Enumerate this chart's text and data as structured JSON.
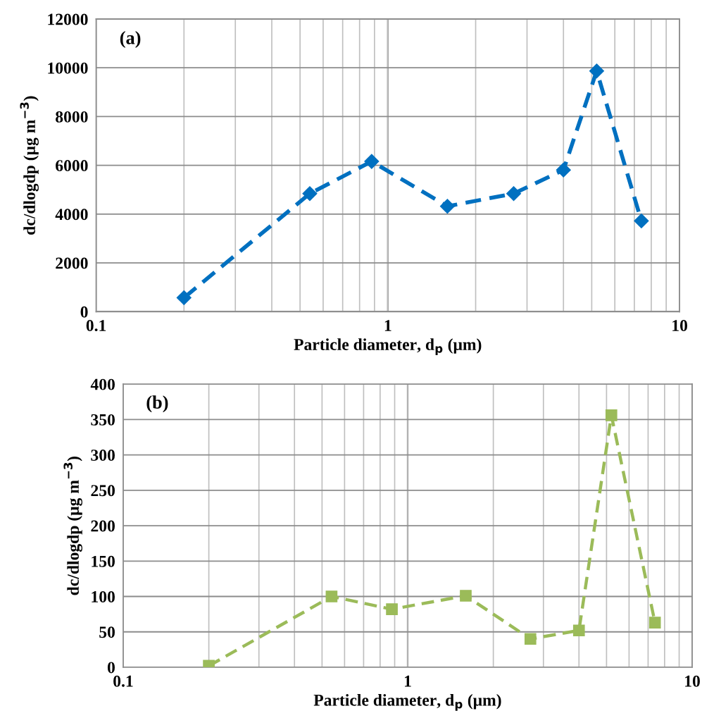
{
  "chart_data": [
    {
      "type": "line",
      "annotations": [
        "(a)"
      ],
      "xlabel": "Particle diameter, d$_{p}$ (μm)",
      "ylabel": "dc/dlogdp (μg m$^{−3}$)",
      "log": "x",
      "xlim": [
        0.1,
        10
      ],
      "xticks": [
        0.1,
        1,
        10
      ],
      "ylim": [
        0,
        12000
      ],
      "yticks": [
        0,
        2000,
        4000,
        6000,
        8000,
        10000,
        12000
      ],
      "grid": true,
      "ref_lines": [
        {
          "axis": "x",
          "value": 1,
          "color": "#6e6e6e"
        }
      ],
      "marker": "diamond",
      "line_style": "dashed",
      "x": [
        0.2,
        0.54,
        0.88,
        1.6,
        2.7,
        4.0,
        5.2,
        7.4
      ],
      "series": [
        {
          "color": "#0070c0",
          "values": [
            570,
            4840,
            6160,
            4320,
            4840,
            5810,
            9870,
            3720
          ]
        }
      ]
    },
    {
      "type": "line",
      "annotations": [
        "(b)"
      ],
      "xlabel": "Particle diameter, d$_{p}$ (μm)",
      "ylabel": "dc/dlogdp (μg m$^{−3}$)",
      "log": "x",
      "xlim": [
        0.1,
        10
      ],
      "xticks": [
        0.1,
        1,
        10
      ],
      "ylim": [
        0,
        400
      ],
      "yticks": [
        0,
        50,
        100,
        150,
        200,
        250,
        300,
        350,
        400
      ],
      "grid": true,
      "ref_lines": [
        {
          "axis": "x",
          "value": 1,
          "color": "#6e6e6e"
        }
      ],
      "marker": "square",
      "line_style": "dashed",
      "x": [
        0.2,
        0.54,
        0.88,
        1.6,
        2.7,
        4.0,
        5.2,
        7.4
      ],
      "series": [
        {
          "color": "#9bbb59",
          "values": [
            2,
            100,
            82,
            101,
            40,
            52,
            356,
            63
          ]
        }
      ]
    }
  ]
}
